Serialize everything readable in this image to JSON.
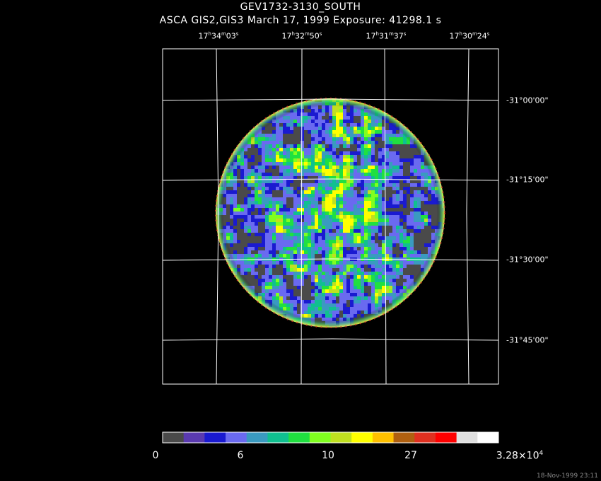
{
  "header": {
    "title": "GEV1732-3130_SOUTH",
    "subtitle": "ASCA GIS2,GIS3 March 17, 1999 Exposure: 41298.1 s"
  },
  "ra_labels": [
    {
      "h": "17",
      "m": "34",
      "s": "03"
    },
    {
      "h": "17",
      "m": "32",
      "s": "50"
    },
    {
      "h": "17",
      "m": "31",
      "s": "37"
    },
    {
      "h": "17",
      "m": "30",
      "s": "24"
    }
  ],
  "dec_labels": [
    "-31°00'00\"",
    "-31°15'00\"",
    "-31°30'00\"",
    "-31°45'00\""
  ],
  "colorbar": {
    "colors": [
      "#4a4a4a",
      "#5a3ab0",
      "#1a1ad0",
      "#6a6af0",
      "#3a9ac0",
      "#10c090",
      "#20e040",
      "#80ff20",
      "#c0e020",
      "#ffff00",
      "#ffc000",
      "#b06010",
      "#e03020",
      "#ff0000",
      "#e0e0e0",
      "#ffffff"
    ],
    "labels": [
      {
        "text": "0"
      },
      {
        "text": "6"
      },
      {
        "text": "10"
      },
      {
        "text": "27"
      },
      {
        "text": "3.28×10",
        "sup": "4"
      }
    ]
  },
  "timestamp": "18-Nov-1999 23:11"
}
